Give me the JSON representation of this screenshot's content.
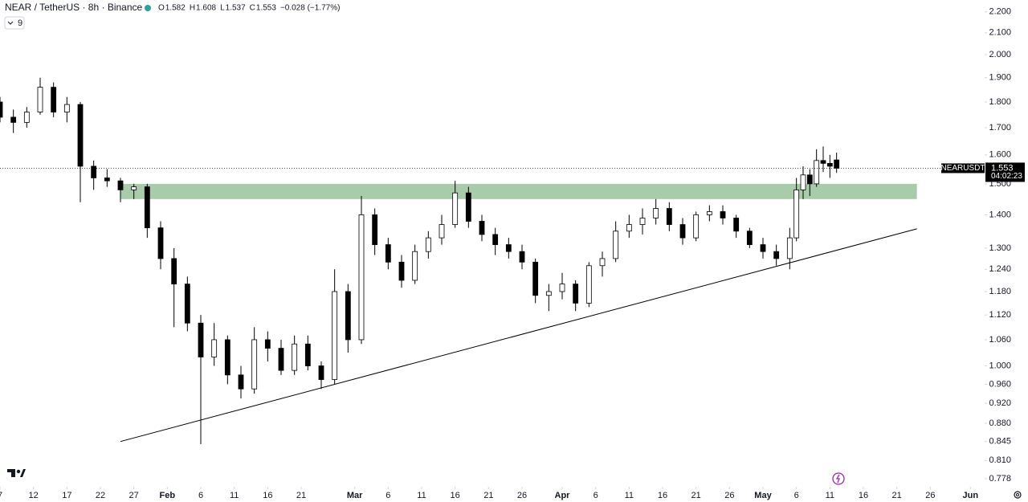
{
  "chart_data": {
    "type": "candlestick",
    "title": "NEAR / TetherUS · 8h · Binance",
    "ohlc": [
      {
        "label": "O",
        "value": 1.582
      },
      {
        "label": "H",
        "value": 1.608
      },
      {
        "label": "L",
        "value": 1.537
      },
      {
        "label": "C",
        "value": 1.553
      }
    ],
    "change_text": "−0.028 (−1.77%)",
    "indicator_count": 9,
    "log": true,
    "grid": false,
    "up_color": "#ffffff",
    "down_color": "#000000",
    "x": [
      "01-07",
      "01-09",
      "01-11",
      "01-13",
      "01-15",
      "01-17",
      "01-19",
      "01-21",
      "01-23",
      "01-25",
      "01-27",
      "01-29",
      "01-31",
      "02-02",
      "02-04",
      "02-06",
      "02-08",
      "02-10",
      "02-12",
      "02-14",
      "02-16",
      "02-18",
      "02-20",
      "02-22",
      "02-24",
      "02-26",
      "02-28",
      "03-02",
      "03-04",
      "03-06",
      "03-08",
      "03-10",
      "03-12",
      "03-14",
      "03-16",
      "03-18",
      "03-20",
      "03-22",
      "03-24",
      "03-26",
      "03-28",
      "03-30",
      "04-01",
      "04-03",
      "04-05",
      "04-07",
      "04-09",
      "04-11",
      "04-13",
      "04-15",
      "04-17",
      "04-19",
      "04-21",
      "04-23",
      "04-25",
      "04-27",
      "04-29",
      "05-01",
      "05-03",
      "05-05",
      "05-06",
      "05-07",
      "05-08",
      "05-09",
      "05-10",
      "05-11",
      "05-12"
    ],
    "open": [
      1.8,
      1.74,
      1.72,
      1.76,
      1.86,
      1.76,
      1.79,
      1.56,
      1.52,
      1.51,
      1.48,
      1.49,
      1.36,
      1.27,
      1.2,
      1.1,
      1.02,
      1.06,
      0.98,
      0.95,
      1.06,
      1.04,
      0.99,
      1.05,
      1.0,
      0.97,
      1.18,
      1.06,
      1.4,
      1.31,
      1.26,
      1.21,
      1.29,
      1.33,
      1.37,
      1.47,
      1.38,
      1.34,
      1.31,
      1.29,
      1.26,
      1.17,
      1.18,
      1.2,
      1.15,
      1.25,
      1.27,
      1.35,
      1.37,
      1.39,
      1.42,
      1.37,
      1.33,
      1.4,
      1.41,
      1.39,
      1.35,
      1.31,
      1.29,
      1.27,
      1.33,
      1.48,
      1.53,
      1.5,
      1.58,
      1.57,
      1.582
    ],
    "high": [
      1.82,
      1.77,
      1.78,
      1.9,
      1.88,
      1.82,
      1.8,
      1.58,
      1.55,
      1.52,
      1.5,
      1.5,
      1.38,
      1.3,
      1.22,
      1.12,
      1.1,
      1.07,
      1.0,
      1.09,
      1.08,
      1.06,
      1.07,
      1.07,
      1.01,
      1.24,
      1.2,
      1.46,
      1.42,
      1.33,
      1.28,
      1.31,
      1.35,
      1.4,
      1.51,
      1.49,
      1.4,
      1.36,
      1.33,
      1.31,
      1.27,
      1.2,
      1.23,
      1.21,
      1.26,
      1.29,
      1.38,
      1.4,
      1.42,
      1.45,
      1.44,
      1.39,
      1.41,
      1.43,
      1.43,
      1.4,
      1.36,
      1.33,
      1.31,
      1.36,
      1.52,
      1.56,
      1.55,
      1.62,
      1.63,
      1.6,
      1.608
    ],
    "low": [
      1.72,
      1.68,
      1.7,
      1.75,
      1.74,
      1.72,
      1.44,
      1.48,
      1.49,
      1.44,
      1.45,
      1.33,
      1.24,
      1.09,
      1.08,
      0.84,
      1.0,
      0.96,
      0.93,
      0.94,
      1.01,
      0.98,
      0.98,
      0.99,
      0.95,
      0.96,
      1.03,
      1.05,
      1.28,
      1.24,
      1.19,
      1.2,
      1.27,
      1.31,
      1.36,
      1.36,
      1.32,
      1.28,
      1.27,
      1.24,
      1.15,
      1.13,
      1.16,
      1.13,
      1.14,
      1.22,
      1.26,
      1.33,
      1.34,
      1.37,
      1.35,
      1.31,
      1.32,
      1.38,
      1.37,
      1.33,
      1.3,
      1.27,
      1.25,
      1.24,
      1.32,
      1.45,
      1.46,
      1.49,
      1.54,
      1.52,
      1.537
    ],
    "close": [
      1.74,
      1.72,
      1.76,
      1.86,
      1.76,
      1.79,
      1.56,
      1.52,
      1.51,
      1.48,
      1.49,
      1.36,
      1.27,
      1.2,
      1.1,
      1.02,
      1.06,
      0.98,
      0.95,
      1.06,
      1.04,
      0.99,
      1.05,
      1.0,
      0.97,
      1.18,
      1.06,
      1.4,
      1.31,
      1.26,
      1.21,
      1.29,
      1.33,
      1.37,
      1.47,
      1.38,
      1.34,
      1.31,
      1.29,
      1.26,
      1.17,
      1.18,
      1.2,
      1.15,
      1.25,
      1.27,
      1.35,
      1.37,
      1.39,
      1.42,
      1.37,
      1.33,
      1.4,
      1.41,
      1.39,
      1.35,
      1.31,
      1.29,
      1.27,
      1.33,
      1.48,
      1.53,
      1.5,
      1.58,
      1.57,
      1.56,
      1.553
    ],
    "xlim": [
      "01-07",
      "06-03"
    ],
    "xticks": [
      {
        "value": "01-07",
        "label": "7"
      },
      {
        "value": "01-12",
        "label": "12"
      },
      {
        "value": "01-17",
        "label": "17"
      },
      {
        "value": "01-22",
        "label": "22"
      },
      {
        "value": "01-27",
        "label": "27"
      },
      {
        "value": "02-01",
        "label": "Feb"
      },
      {
        "value": "02-06",
        "label": "6"
      },
      {
        "value": "02-11",
        "label": "11"
      },
      {
        "value": "02-16",
        "label": "16"
      },
      {
        "value": "02-21",
        "label": "21"
      },
      {
        "value": "03-01",
        "label": "Mar"
      },
      {
        "value": "03-06",
        "label": "6"
      },
      {
        "value": "03-11",
        "label": "11"
      },
      {
        "value": "03-16",
        "label": "16"
      },
      {
        "value": "03-21",
        "label": "21"
      },
      {
        "value": "03-26",
        "label": "26"
      },
      {
        "value": "04-01",
        "label": "Apr"
      },
      {
        "value": "04-06",
        "label": "6"
      },
      {
        "value": "04-11",
        "label": "11"
      },
      {
        "value": "04-16",
        "label": "16"
      },
      {
        "value": "04-21",
        "label": "21"
      },
      {
        "value": "04-26",
        "label": "26"
      },
      {
        "value": "05-01",
        "label": "May"
      },
      {
        "value": "05-06",
        "label": "6"
      },
      {
        "value": "05-11",
        "label": "11"
      },
      {
        "value": "05-16",
        "label": "16"
      },
      {
        "value": "05-21",
        "label": "21"
      },
      {
        "value": "05-26",
        "label": "26"
      },
      {
        "value": "06-01",
        "label": "Jun"
      }
    ],
    "ylim": [
      0.764,
      2.259
    ],
    "yticks": [
      {
        "value": 2.2,
        "label": "2.200"
      },
      {
        "value": 2.1,
        "label": "2.100"
      },
      {
        "value": 2.0,
        "label": "2.000"
      },
      {
        "value": 1.9,
        "label": "1.900"
      },
      {
        "value": 1.8,
        "label": "1.800"
      },
      {
        "value": 1.7,
        "label": "1.700"
      },
      {
        "value": 1.6,
        "label": "1.600"
      },
      {
        "value": 1.5,
        "label": "1.500"
      },
      {
        "value": 1.4,
        "label": "1.400"
      },
      {
        "value": 1.3,
        "label": "1.300"
      },
      {
        "value": 1.24,
        "label": "1.240"
      },
      {
        "value": 1.18,
        "label": "1.180"
      },
      {
        "value": 1.12,
        "label": "1.120"
      },
      {
        "value": 1.06,
        "label": "1.060"
      },
      {
        "value": 1.0,
        "label": "1.000"
      },
      {
        "value": 0.96,
        "label": "0.960"
      },
      {
        "value": 0.92,
        "label": "0.920"
      },
      {
        "value": 0.88,
        "label": "0.880"
      },
      0.845,
      {
        "value": 0.81,
        "label": "0.810"
      },
      0.778
    ],
    "last_price": 1.553,
    "symbol_tag": "NEARUSDT",
    "countdown": "04:02:23",
    "zone": {
      "from": "01-25",
      "to": "05-24",
      "low": 1.45,
      "high": 1.5,
      "color": "#a8cba9"
    },
    "trendline": {
      "from": "01-25",
      "to": "05-24",
      "start": 0.845,
      "end": 1.357,
      "color": "#000000"
    }
  }
}
